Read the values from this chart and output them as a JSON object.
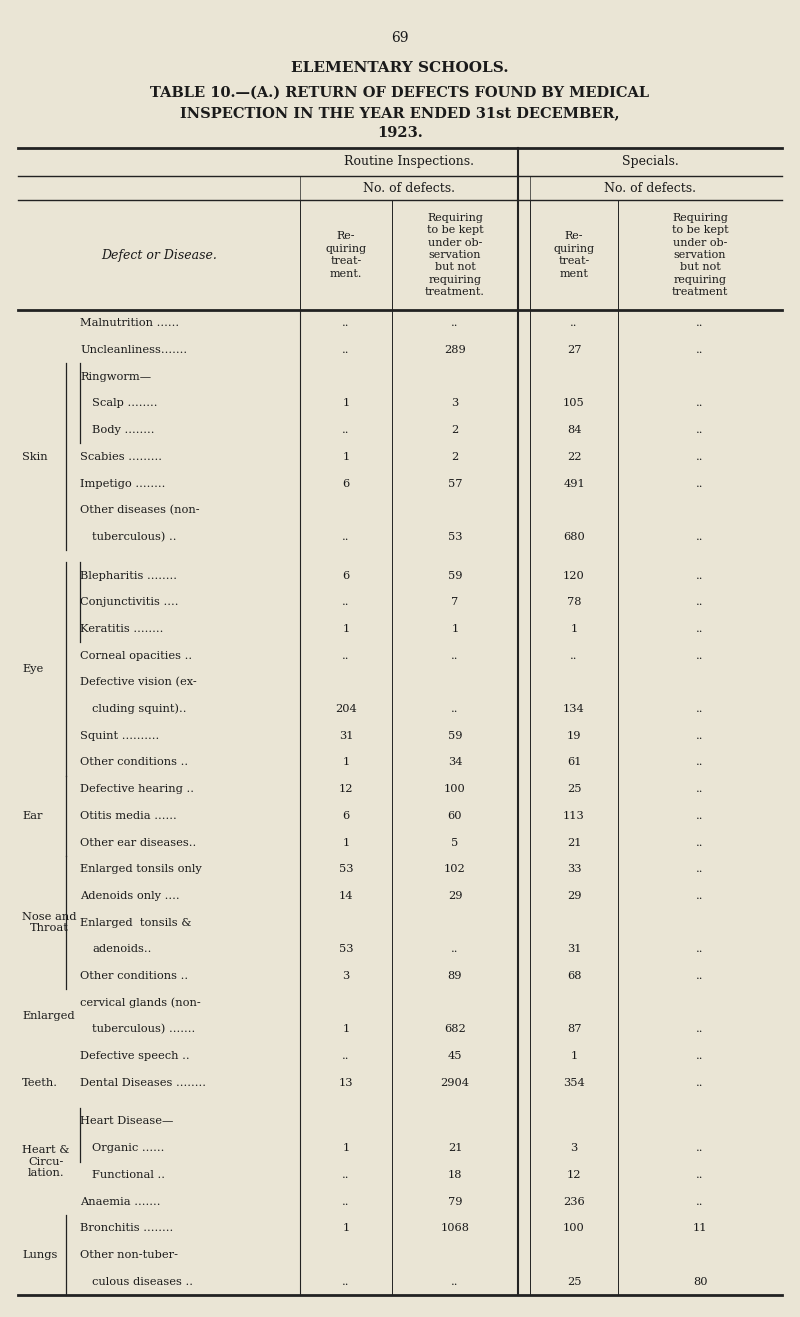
{
  "page_number": "69",
  "title1": "ELEMENTARY SCHOOLS.",
  "title2": "TABLE 10.—(A.) RETURN OF DEFECTS FOUND BY MEDICAL",
  "title3": "INSPECTION IN THE YEAR ENDED 31st DECEMBER,",
  "title4": "1923.",
  "bg_color": "#EAE5D5",
  "text_color": "#1a1a1a",
  "rows": [
    {
      "cat": "",
      "label": "Malnutrition ......",
      "c1": "..",
      "c2": "..",
      "c3": "..",
      "c4": "..",
      "indent": 0,
      "bracket": ""
    },
    {
      "cat": "",
      "label": "Uncleanliness.......",
      "c1": "..",
      "c2": "289",
      "c3": "27",
      "c4": "..",
      "indent": 0,
      "bracket": ""
    },
    {
      "cat": "",
      "label": "Ringworm—",
      "c1": "",
      "c2": "",
      "c3": "",
      "c4": "",
      "indent": 0,
      "bracket": "rw_start"
    },
    {
      "cat": "",
      "label": "Scalp ........",
      "c1": "1",
      "c2": "3",
      "c3": "105",
      "c4": "..",
      "indent": 1,
      "bracket": ""
    },
    {
      "cat": "Skin",
      "label": "Body ........",
      "c1": "..",
      "c2": "2",
      "c3": "84",
      "c4": "..",
      "indent": 1,
      "bracket": "rw_end"
    },
    {
      "cat": "",
      "label": "Scabies .........",
      "c1": "1",
      "c2": "2",
      "c3": "22",
      "c4": "..",
      "indent": 0,
      "bracket": ""
    },
    {
      "cat": "",
      "label": "Impetigo ........",
      "c1": "6",
      "c2": "57",
      "c3": "491",
      "c4": "..",
      "indent": 0,
      "bracket": ""
    },
    {
      "cat": "",
      "label": "Other diseases (non-",
      "c1": "",
      "c2": "",
      "c3": "",
      "c4": "",
      "indent": 0,
      "bracket": ""
    },
    {
      "cat": "",
      "label": "tuberculous) ..",
      "c1": "..",
      "c2": "53",
      "c3": "680",
      "c4": "..",
      "indent": 1,
      "bracket": "skin_end"
    },
    {
      "cat": "",
      "label": "",
      "c1": "",
      "c2": "",
      "c3": "",
      "c4": "",
      "indent": 0,
      "bracket": ""
    },
    {
      "cat": "",
      "label": "Blepharitis ........",
      "c1": "6",
      "c2": "59",
      "c3": "120",
      "c4": "..",
      "indent": 0,
      "bracket": "eye_start"
    },
    {
      "cat": "",
      "label": "Conjunctivitis ....",
      "c1": "..",
      "c2": "7",
      "c3": "78",
      "c4": "..",
      "indent": 0,
      "bracket": ""
    },
    {
      "cat": "",
      "label": "Keratitis ........",
      "c1": "1",
      "c2": "1",
      "c3": "1",
      "c4": "..",
      "indent": 0,
      "bracket": ""
    },
    {
      "cat": "Eye",
      "label": "Corneal opacities ..",
      "c1": "..",
      "c2": "..",
      "c3": "..",
      "c4": "..",
      "indent": 0,
      "bracket": ""
    },
    {
      "cat": "",
      "label": "Defective vision (ex-",
      "c1": "",
      "c2": "",
      "c3": "",
      "c4": "",
      "indent": 0,
      "bracket": ""
    },
    {
      "cat": "",
      "label": "cluding squint)..",
      "c1": "204",
      "c2": "..",
      "c3": "134",
      "c4": "..",
      "indent": 1,
      "bracket": ""
    },
    {
      "cat": "",
      "label": "Squint ..........",
      "c1": "31",
      "c2": "59",
      "c3": "19",
      "c4": "..",
      "indent": 0,
      "bracket": ""
    },
    {
      "cat": "",
      "label": "Other conditions ..",
      "c1": "1",
      "c2": "34",
      "c3": "61",
      "c4": "..",
      "indent": 0,
      "bracket": "eye_end"
    },
    {
      "cat": "",
      "label": "Defective hearing ..",
      "c1": "12",
      "c2": "100",
      "c3": "25",
      "c4": "..",
      "indent": 0,
      "bracket": "ear_start"
    },
    {
      "cat": "Ear",
      "label": "Otitis media ......",
      "c1": "6",
      "c2": "60",
      "c3": "113",
      "c4": "..",
      "indent": 0,
      "bracket": ""
    },
    {
      "cat": "",
      "label": "Other ear diseases..",
      "c1": "1",
      "c2": "5",
      "c3": "21",
      "c4": "..",
      "indent": 0,
      "bracket": "ear_end"
    },
    {
      "cat": "",
      "label": "Enlarged tonsils only",
      "c1": "53",
      "c2": "102",
      "c3": "33",
      "c4": "..",
      "indent": 0,
      "bracket": "nt_start"
    },
    {
      "cat": "Nose and",
      "label": "Adenoids only ....",
      "c1": "14",
      "c2": "29",
      "c3": "29",
      "c4": "..",
      "indent": 0,
      "bracket": ""
    },
    {
      "cat": "Throat",
      "label": "Enlarged  tonsils &",
      "c1": "",
      "c2": "",
      "c3": "",
      "c4": "",
      "indent": 0,
      "bracket": ""
    },
    {
      "cat": "",
      "label": "adenoids..",
      "c1": "53",
      "c2": "..",
      "c3": "31",
      "c4": "..",
      "indent": 1,
      "bracket": ""
    },
    {
      "cat": "",
      "label": "Other conditions ..",
      "c1": "3",
      "c2": "89",
      "c3": "68",
      "c4": "..",
      "indent": 0,
      "bracket": "nt_end"
    },
    {
      "cat": "Enlarged",
      "label": "cervical glands (non-",
      "c1": "",
      "c2": "",
      "c3": "",
      "c4": "",
      "indent": 0,
      "bracket": ""
    },
    {
      "cat": "",
      "label": "tuberculous) .......",
      "c1": "1",
      "c2": "682",
      "c3": "87",
      "c4": "..",
      "indent": 1,
      "bracket": ""
    },
    {
      "cat": "",
      "label": "Defective speech ..",
      "c1": "..",
      "c2": "45",
      "c3": "1",
      "c4": "..",
      "indent": 0,
      "bracket": ""
    },
    {
      "cat": "Teeth.",
      "label": "Dental Diseases ........",
      "c1": "13",
      "c2": "2904",
      "c3": "354",
      "c4": "..",
      "indent": 0,
      "bracket": ""
    },
    {
      "cat": "",
      "label": "",
      "c1": "",
      "c2": "",
      "c3": "",
      "c4": "",
      "indent": 0,
      "bracket": ""
    },
    {
      "cat": "Heart &",
      "label": "Heart Disease—",
      "c1": "",
      "c2": "",
      "c3": "",
      "c4": "",
      "indent": 0,
      "bracket": "hd_start"
    },
    {
      "cat": "Circu-",
      "label": "Organic ......",
      "c1": "1",
      "c2": "21",
      "c3": "3",
      "c4": "..",
      "indent": 1,
      "bracket": ""
    },
    {
      "cat": "lation.",
      "label": "Functional ..",
      "c1": "..",
      "c2": "18",
      "c3": "12",
      "c4": "..",
      "indent": 1,
      "bracket": "hd_end"
    },
    {
      "cat": "",
      "label": "Anaemia .......",
      "c1": "..",
      "c2": "79",
      "c3": "236",
      "c4": "..",
      "indent": 0,
      "bracket": ""
    },
    {
      "cat": "",
      "label": "Bronchitis ........",
      "c1": "1",
      "c2": "1068",
      "c3": "100",
      "c4": "11",
      "indent": 0,
      "bracket": "lu_start"
    },
    {
      "cat": "Lungs",
      "label": "Other non-tuber-",
      "c1": "",
      "c2": "",
      "c3": "",
      "c4": "",
      "indent": 0,
      "bracket": ""
    },
    {
      "cat": "",
      "label": "culous diseases ..",
      "c1": "..",
      "c2": "..",
      "c3": "25",
      "c4": "80",
      "indent": 1,
      "bracket": "lu_end"
    }
  ]
}
